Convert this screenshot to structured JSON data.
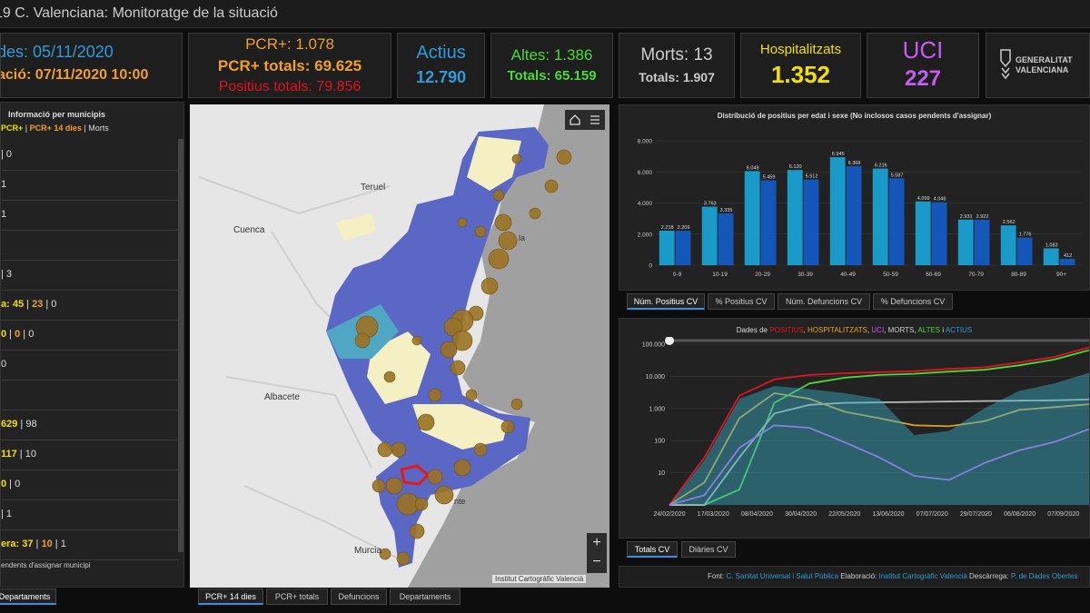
{
  "title": "19 C. Valenciana: Monitoratge de la situació",
  "kpis": {
    "dates": {
      "line1": "des: 05/11/2020",
      "line2": "ació: 07/11/2020 10:00"
    },
    "pcr": {
      "line1": "PCR+: 1.078",
      "line2": "PCR+ totals: 69.625",
      "line3": "Positius totals: 79.856"
    },
    "actius": {
      "label": "Actius",
      "value": "12.790"
    },
    "altes": {
      "line1": "Altes: 1.386",
      "line2": "Totals: 65.159"
    },
    "morts": {
      "line1": "Morts: 13",
      "line2": "Totals: 1.907"
    },
    "hosp": {
      "label": "Hospitalitzats",
      "value": "1.352"
    },
    "uci": {
      "label": "UCI",
      "value": "227"
    },
    "logo": {
      "line1": "GENERALITAT",
      "line2": "VALENCIANA"
    }
  },
  "colors": {
    "blue": "#2f9bd8",
    "orange": "#f0a028",
    "red": "#e0141e",
    "green": "#4cd93a",
    "yellow": "#f3e000",
    "purple": "#c45cf0",
    "bar1": "#1a9ac8",
    "bar2": "#1457b8"
  },
  "left_panel": {
    "header": "Informació per municipis",
    "legend": {
      "a": "PCR+",
      "sep1": " | ",
      "b": "PCR+ 14 dies",
      "sep2": " | ",
      "c": "Morts"
    },
    "rows": [
      {
        "a": "",
        "sep1": "",
        "b": "",
        "sep2": " | ",
        "c": "0"
      },
      {
        "a": "",
        "sep1": "",
        "b": "",
        "sep2": "",
        "c": "1"
      },
      {
        "a": "",
        "sep1": "",
        "b": "",
        "sep2": "",
        "c": "1"
      },
      {
        "a": "",
        "sep1": "",
        "b": "",
        "sep2": "",
        "c": ""
      },
      {
        "a": "",
        "sep1": "",
        "b": "",
        "sep2": " | ",
        "c": "3"
      },
      {
        "a": "a: 45",
        "sep1": " | ",
        "b": "23",
        "sep2": " | ",
        "c": "0"
      },
      {
        "a": "0",
        "sep1": " | ",
        "b": "0",
        "sep2": " | ",
        "c": "0"
      },
      {
        "a": "",
        "sep1": "",
        "b": "",
        "sep2": "",
        "c": "0"
      },
      {
        "a": "",
        "sep1": "",
        "b": "",
        "sep2": "",
        "c": ""
      },
      {
        "a": "629",
        "sep1": " | ",
        "b": "",
        "sep2": "",
        "c": "98"
      },
      {
        "a": "117",
        "sep1": " | ",
        "b": "",
        "sep2": "",
        "c": "10"
      },
      {
        "a": "0",
        "sep1": " | ",
        "b": "",
        "sep2": "",
        "c": "0"
      },
      {
        "a": "",
        "sep1": "",
        "b": "",
        "sep2": " | ",
        "c": "1"
      },
      {
        "a": "era: 37",
        "sep1": " | ",
        "b": "10",
        "sep2": " | ",
        "c": "1"
      }
    ],
    "note": "endents d'assignar municipi",
    "tab": "Departaments"
  },
  "map": {
    "labels": {
      "teruel": "Teruel",
      "cuenca": "Cuenca",
      "albacete": "Albacete",
      "murcia": "Murcia",
      "la": "la",
      "nte": "nte"
    },
    "attribution": "Institut Cartogràfic Valencià",
    "home_icon": "home-icon",
    "list_icon": "list-icon",
    "zoom_in": "+",
    "zoom_out": "−",
    "tabs": [
      "PCR+ 14 dies",
      "PCR+ totals",
      "Defuncions",
      "Departaments"
    ]
  },
  "bar_chart_tabs": [
    "Núm. Positius CV",
    "% Positius CV",
    "Núm. Defuncions CV",
    "% Defuncions CV"
  ],
  "line_chart_tabs": [
    "Totals CV",
    "Diàries CV"
  ],
  "line_title": {
    "prefix": "Dades de ",
    "positius": "POSITIUS",
    "c1": ", ",
    "hosp": "HOSPITALITZATS",
    "c2": ", ",
    "uci": "UCI",
    "c3": ", ",
    "morts": "MORTS",
    "c4": ", ",
    "altes": "ALTES",
    "c5": " i ",
    "actius": "ACTIUS"
  },
  "footer": {
    "font_label": "Font: ",
    "font_val": "C. Sanitat Universal i Salut Pública",
    "elab_label": " Elaboració: ",
    "elab_val": "Institut Cartogràfic Valencià",
    "desc_label": " Descàrrega: ",
    "desc_val": "P. de Dades Obertes"
  },
  "chart_data": [
    {
      "type": "bar",
      "title": "Distribució de positius per edat i sexe (No inclosos casos pendents d'assignar)",
      "categories": [
        "0-9",
        "10-19",
        "20-29",
        "30-39",
        "40-49",
        "50-59",
        "60-69",
        "70-79",
        "80-89",
        "90+"
      ],
      "series": [
        {
          "values": [
            2218,
            3763,
            6049,
            6120,
            6945,
            6216,
            4099,
            2931,
            2562,
            1083
          ],
          "labels": [
            "2.218",
            "3.763",
            "6.049",
            "6.120",
            "6.945",
            "6.216",
            "4.099",
            "2.931",
            "2.562",
            "1.083"
          ]
        },
        {
          "values": [
            2209,
            3335,
            5459,
            5512,
            6368,
            5587,
            4046,
            2922,
            1776,
            412
          ],
          "labels": [
            "2.209",
            "3.335",
            "5.459",
            "5.512",
            "6.368",
            "5.587",
            "4.046",
            "2.922",
            "1.776",
            "412"
          ]
        }
      ],
      "yticks": [
        0,
        2000,
        4000,
        6000,
        8000
      ],
      "ytick_labels": [
        "0",
        "2.000",
        "4.000",
        "6.000",
        "8.000"
      ],
      "ylim": [
        0,
        8000
      ]
    },
    {
      "type": "line",
      "scale": "log",
      "ylim": [
        1,
        100000
      ],
      "yticks": [
        10,
        100,
        1000,
        10000,
        100000
      ],
      "ytick_labels": [
        "10",
        "100",
        "1.000",
        "10.000",
        "100.000"
      ],
      "x_tick_labels": [
        "24/02/2020",
        "17/03/2020",
        "08/04/2020",
        "30/04/2020",
        "22/05/2020",
        "13/06/2020",
        "07/07/2020",
        "29/07/2020",
        "06/08/2020",
        "07/09/2020",
        "07/"
      ],
      "x": [
        "24/02/2020",
        "10/03/2020",
        "25/03/2020",
        "08/04/2020",
        "30/04/2020",
        "22/05/2020",
        "13/06/2020",
        "07/07/2020",
        "29/07/2020",
        "06/08/2020",
        "07/09/2020",
        "07/10/2020",
        "05/11/2020"
      ],
      "series": [
        {
          "color": "#e0141e",
          "values": [
            1,
            30,
            2500,
            8000,
            11000,
            12500,
            13500,
            14500,
            17000,
            19000,
            27000,
            40000,
            79856
          ]
        },
        {
          "color": "#4cd93a",
          "values": [
            1,
            1,
            3,
            1500,
            6000,
            9000,
            11000,
            12000,
            14000,
            16000,
            22000,
            33000,
            65159
          ]
        },
        {
          "color": "#bbbbbb",
          "values": [
            1,
            1,
            30,
            700,
            1300,
            1500,
            1550,
            1600,
            1650,
            1700,
            1750,
            1800,
            1907
          ]
        },
        {
          "color": "#d8a030",
          "values": [
            1,
            5,
            500,
            3000,
            2000,
            800,
            500,
            300,
            280,
            400,
            900,
            1100,
            1352
          ]
        },
        {
          "color": "#c45cf0",
          "values": [
            1,
            2,
            60,
            300,
            250,
            90,
            30,
            8,
            6,
            20,
            50,
            90,
            227
          ]
        },
        {
          "color": "#3ab0c8",
          "values": [
            1,
            25,
            2000,
            5000,
            4000,
            3000,
            2000,
            150,
            200,
            1000,
            3500,
            6000,
            12790
          ]
        }
      ]
    }
  ]
}
